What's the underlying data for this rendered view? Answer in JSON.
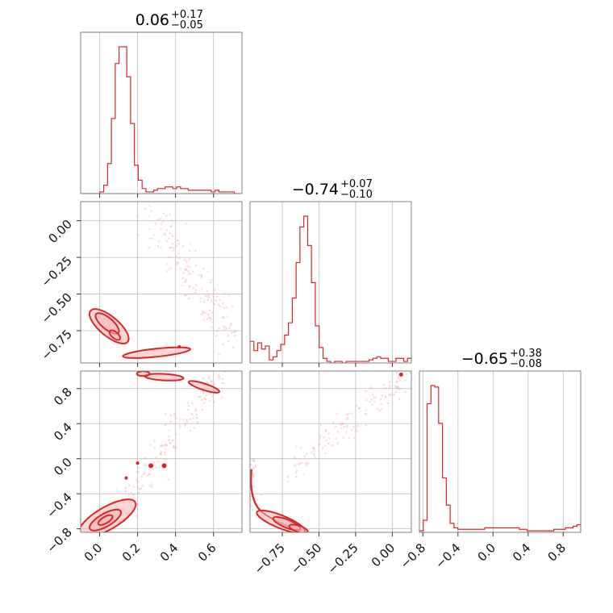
{
  "colors": {
    "accent": "#d62728",
    "fill": "#f5b4b4",
    "scatter": "#f0a0a0",
    "grid": "#bdbdbd",
    "frame": "#808080"
  },
  "chart_data": {
    "type": "corner",
    "parameters": [
      {
        "title_value": "0.06",
        "title_plus": "+0.17",
        "title_minus": "−0.05",
        "range": [
          -0.1,
          0.75
        ],
        "ticks": [
          0.0,
          0.2,
          0.4,
          0.6
        ],
        "tick_labels": [
          "0.0",
          "0.2",
          "0.4",
          "0.6"
        ]
      },
      {
        "title_value": "−0.74",
        "title_plus": "+0.07",
        "title_minus": "−0.10",
        "range": [
          -0.97,
          0.13
        ],
        "ticks": [
          -0.75,
          -0.5,
          -0.25,
          0.0
        ],
        "tick_labels": [
          "−0.75",
          "−0.50",
          "−0.25",
          "0.00"
        ]
      },
      {
        "title_value": "−0.65",
        "title_plus": "+0.38",
        "title_minus": "−0.08",
        "range": [
          -0.84,
          1.0
        ],
        "ticks": [
          -0.8,
          -0.4,
          0.0,
          0.4,
          0.8
        ],
        "tick_labels": [
          "−0.8",
          "−0.4",
          "0.0",
          "0.4",
          "0.8"
        ]
      }
    ],
    "histograms": [
      {
        "param": 0,
        "bin_edges_range": [
          -0.1,
          0.75
        ],
        "counts": [
          0,
          0,
          0,
          0,
          0,
          1,
          5,
          18,
          45,
          78,
          88,
          88,
          70,
          42,
          17,
          8,
          3,
          1,
          1,
          2,
          3,
          3,
          4,
          4,
          3,
          4,
          3,
          3,
          2,
          2,
          2,
          2,
          2,
          2,
          1,
          2,
          1,
          1,
          1,
          1,
          0,
          0
        ]
      },
      {
        "param": 1,
        "bin_edges_range": [
          -0.97,
          0.13
        ],
        "counts": [
          14,
          8,
          13,
          9,
          11,
          2,
          4,
          8,
          12,
          18,
          26,
          42,
          65,
          88,
          95,
          76,
          52,
          24,
          10,
          3,
          1,
          0,
          1,
          1,
          0,
          1,
          1,
          1,
          1,
          1,
          1,
          2,
          3,
          4,
          3,
          3,
          1,
          1,
          3,
          3,
          1,
          3
        ]
      },
      {
        "param": 2,
        "bin_edges_range": [
          -0.84,
          1.0
        ],
        "counts": [
          1,
          8,
          85,
          97,
          96,
          72,
          36,
          18,
          6,
          3,
          2,
          2,
          2,
          2,
          2,
          2,
          2,
          3,
          3,
          3,
          3,
          3,
          3,
          3,
          3,
          3,
          2,
          2,
          1,
          1,
          1,
          1,
          1,
          1,
          1,
          2,
          2,
          2,
          3,
          3,
          4,
          5
        ]
      }
    ],
    "pairs": [
      {
        "x_param": 0,
        "y_param": 1,
        "density_peaks": [
          [
            0.03,
            -0.7
          ],
          [
            0.08,
            -0.78
          ]
        ],
        "tail": [
          [
            0.2,
            -0.92
          ],
          [
            0.4,
            -0.88
          ]
        ],
        "scatter_region": [
          [
            0.25,
            0.1
          ],
          [
            0.7,
            -0.8
          ]
        ]
      },
      {
        "x_param": 0,
        "y_param": 2,
        "density_peaks": [
          [
            0.03,
            -0.7
          ],
          [
            0.1,
            -0.55
          ]
        ],
        "tail": [
          [
            0.3,
            0.95
          ],
          [
            0.6,
            0.78
          ]
        ],
        "scatter_region": [
          [
            0.1,
            -0.8
          ],
          [
            0.7,
            0.98
          ]
        ]
      },
      {
        "x_param": 1,
        "y_param": 2,
        "density_peaks": [
          [
            -0.78,
            -0.7
          ],
          [
            -0.62,
            -0.8
          ]
        ],
        "tail": [
          [
            -0.95,
            -0.1
          ],
          [
            0.1,
            0.98
          ]
        ],
        "scatter_region": [
          [
            -0.95,
            -0.8
          ],
          [
            0.1,
            0.98
          ]
        ]
      }
    ],
    "grid": true
  }
}
